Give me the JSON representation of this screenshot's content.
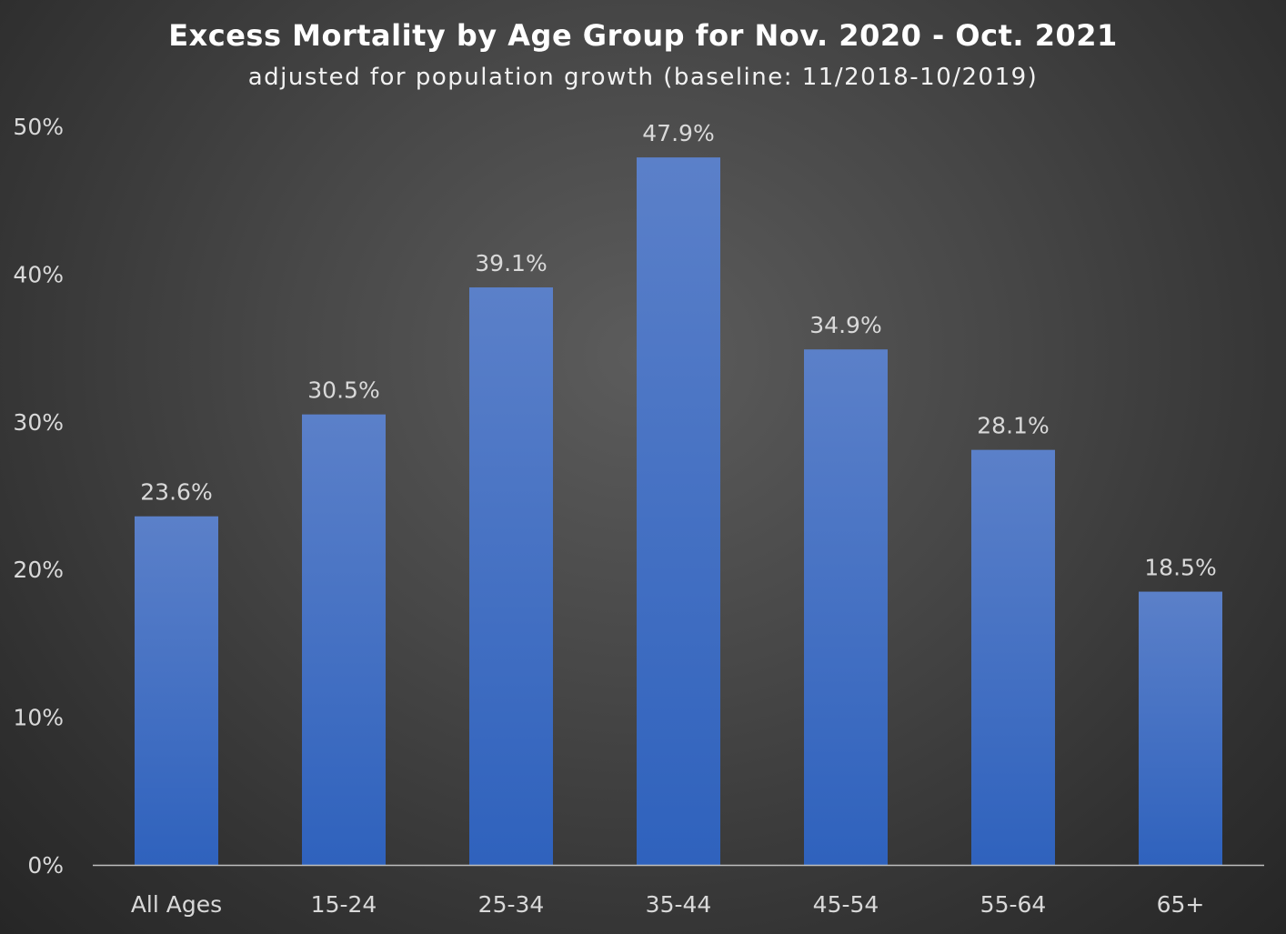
{
  "chart_data": {
    "type": "bar",
    "title": "Excess Mortality by Age Group for Nov. 2020 - Oct. 2021",
    "subtitle": "adjusted for population growth (baseline: 11/2018-10/2019)",
    "categories": [
      "All Ages",
      "15-24",
      "25-34",
      "35-44",
      "45-54",
      "55-64",
      "65+"
    ],
    "values": [
      23.6,
      30.5,
      39.1,
      47.9,
      34.9,
      28.1,
      18.5
    ],
    "data_labels": [
      "23.6%",
      "30.5%",
      "39.1%",
      "47.9%",
      "34.9%",
      "28.1%",
      "18.5%"
    ],
    "y_ticks": [
      0,
      10,
      20,
      30,
      40,
      50
    ],
    "y_tick_labels": [
      "0%",
      "10%",
      "20%",
      "30%",
      "40%",
      "50%"
    ],
    "ylim": [
      0,
      50
    ],
    "xlabel": "",
    "ylabel": "",
    "grid": false,
    "legend": "none",
    "colors": {
      "bar_top": "#5b80c9",
      "bar_bottom": "#2f62bd",
      "axis_line": "#bfbfbf",
      "text": "#d9d9d9",
      "title": "#ffffff"
    }
  }
}
